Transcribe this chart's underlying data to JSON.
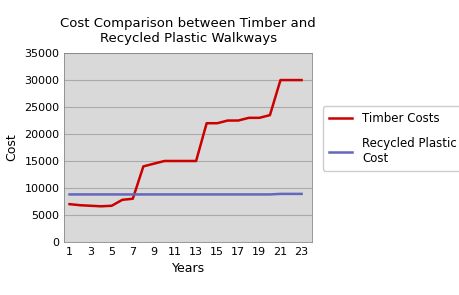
{
  "title": "Cost Comparison between Timber and\nRecycled Plastic Walkways",
  "xlabel": "Years",
  "ylabel": "Cost",
  "xlim": [
    0.5,
    24
  ],
  "ylim": [
    0,
    35000
  ],
  "yticks": [
    0,
    5000,
    10000,
    15000,
    20000,
    25000,
    30000,
    35000
  ],
  "xticks": [
    1,
    3,
    5,
    7,
    9,
    11,
    13,
    15,
    17,
    19,
    21,
    23
  ],
  "timber_years": [
    1,
    2,
    3,
    4,
    5,
    6,
    7,
    8,
    9,
    10,
    11,
    12,
    13,
    14,
    15,
    16,
    17,
    18,
    19,
    20,
    21,
    22,
    23
  ],
  "timber_costs": [
    7000,
    6800,
    6700,
    6600,
    6700,
    7800,
    8000,
    14000,
    14500,
    15000,
    15000,
    15000,
    15000,
    22000,
    22000,
    22500,
    22500,
    23000,
    23000,
    23500,
    30000,
    30000,
    30000
  ],
  "plastic_years": [
    1,
    2,
    3,
    4,
    5,
    6,
    7,
    8,
    9,
    10,
    11,
    12,
    13,
    14,
    15,
    16,
    17,
    18,
    19,
    20,
    21,
    22,
    23
  ],
  "plastic_costs": [
    8800,
    8800,
    8800,
    8800,
    8800,
    8800,
    8800,
    8800,
    8800,
    8800,
    8800,
    8800,
    8800,
    8800,
    8800,
    8800,
    8800,
    8800,
    8800,
    8800,
    8900,
    8900,
    8900
  ],
  "timber_color": "#cc0000",
  "plastic_color": "#6666bb",
  "timber_label": "Timber Costs",
  "plastic_label": "Recycled Plastic\nCost",
  "plot_bg_color": "#d9d9d9",
  "fig_bg_color": "#ffffff",
  "grid_color": "#aaaaaa",
  "line_width": 1.8,
  "title_fontsize": 9.5,
  "axis_label_fontsize": 9,
  "tick_fontsize": 8,
  "legend_fontsize": 8.5
}
